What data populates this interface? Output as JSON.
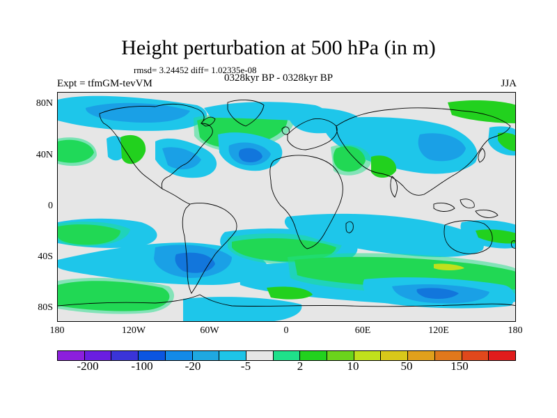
{
  "title": "Height perturbation at 500 hPa (in m)",
  "subtitle": "rmsd= 3.24452 diff= 1.02335e-08",
  "experiment_label": "Expt = tfmGM-tevVM",
  "period_label": "0328kyr BP - 0328kyr BP",
  "season_label": "JJA",
  "lat_ticks": [
    "80N",
    "40N",
    "0",
    "40S",
    "80S"
  ],
  "lon_ticks": [
    "180",
    "120W",
    "60W",
    "0",
    "60E",
    "120E",
    "180"
  ],
  "legend_labels": [
    "-200",
    "-100",
    "-20",
    "-5",
    "2",
    "10",
    "50",
    "150"
  ],
  "palette": [
    "#8c1fdc",
    "#6a1ee0",
    "#3a34d8",
    "#0b55e0",
    "#138ae8",
    "#1fa8e0",
    "#1ec4e8",
    "#e6e6e6",
    "#1fe08a",
    "#22d11e",
    "#6bd41c",
    "#c0e01c",
    "#d8c81a",
    "#e0a01c",
    "#e0781c",
    "#e0481c",
    "#e01c1c"
  ],
  "colors": {
    "land_outline": "#000000",
    "neutral": "#e6e6e6",
    "dark_blue": "#1276dc",
    "blue": "#1aa0e6",
    "cyan": "#1ec6ea",
    "teal": "#1fe08a",
    "green": "#3ad41c",
    "yellow_green": "#c0e01c"
  }
}
